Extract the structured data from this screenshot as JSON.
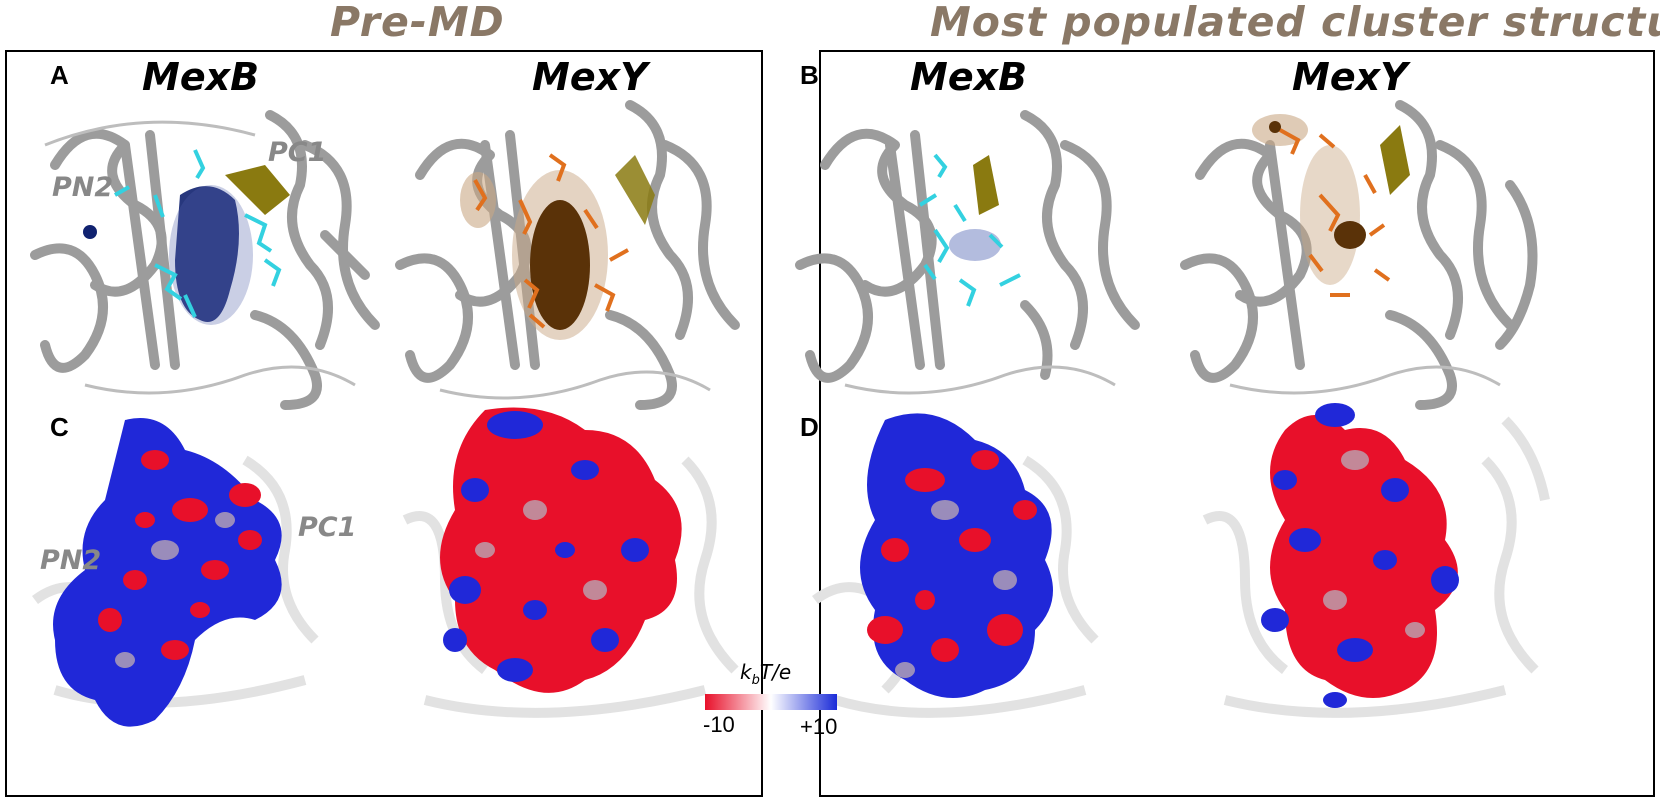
{
  "titles": {
    "pre_md": "Pre-MD",
    "cluster": "Most populated cluster structure"
  },
  "panels": {
    "a": "A",
    "b": "B",
    "c": "C",
    "d": "D"
  },
  "proteins": {
    "mexb": "MexB",
    "mexy": "MexY"
  },
  "sites": {
    "pn2": "PN2",
    "pc1": "PC1"
  },
  "colorbar": {
    "unit_main": "k",
    "unit_sub": "b",
    "unit_rest": "T/e",
    "min_label": "-10",
    "max_label": "+10",
    "min_color": "#e8102a",
    "max_color": "#1a2bd8"
  },
  "colors": {
    "title": "#8a7866",
    "ribbon": "#9c9c9c",
    "cyan_residues": "#33d1e0",
    "orange_residues": "#e0701e",
    "mexb_density": "#102270",
    "mexy_density": "#5a3208",
    "loop": "#8a7a10"
  }
}
